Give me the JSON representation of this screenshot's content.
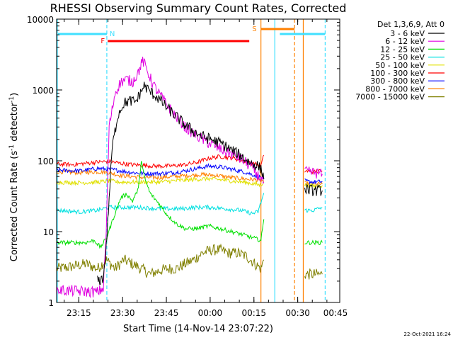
{
  "chart_data": {
    "type": "line",
    "title": "RHESSI Observing Summary Count Rates, Corrected",
    "xlabel": "Start Time (14-Nov-14 23:07:22)",
    "ylabel": "Corrected Count Rate (s",
    "ylabel_sup1": "-1",
    "ylabel_mid": " detector",
    "ylabel_sup2": "-1",
    "ylabel_end": ")",
    "footer": "22-Oct-2021 16:24",
    "y_scale": "log",
    "ylim": [
      1,
      10000
    ],
    "xlim_minutes": [
      0,
      97
    ],
    "x_ticks": [
      {
        "m": 7.6,
        "label": "23:15"
      },
      {
        "m": 22.6,
        "label": "23:30"
      },
      {
        "m": 37.6,
        "label": "23:45"
      },
      {
        "m": 52.6,
        "label": "00:00"
      },
      {
        "m": 67.6,
        "label": "00:15"
      },
      {
        "m": 82.6,
        "label": "00:30"
      },
      {
        "m": 97.6,
        "label": "00:45"
      }
    ],
    "y_ticks": [
      {
        "v": 1,
        "label": "1"
      },
      {
        "v": 10,
        "label": "10"
      },
      {
        "v": 100,
        "label": "100"
      },
      {
        "v": 1000,
        "label": "1000"
      },
      {
        "v": 10000,
        "label": "10000"
      }
    ],
    "legend_header": "Det 1,3,6,9, Att 0",
    "legend_position": "right",
    "grid": false,
    "series": [
      {
        "name": "3 - 6 keV",
        "color": "#000000",
        "points": [
          [
            14,
            2
          ],
          [
            16,
            2.2
          ],
          [
            17,
            6
          ],
          [
            19,
            150
          ],
          [
            21,
            450
          ],
          [
            23,
            650
          ],
          [
            25,
            700
          ],
          [
            27,
            680
          ],
          [
            28,
            800
          ],
          [
            30,
            1150
          ],
          [
            32,
            950
          ],
          [
            35,
            750
          ],
          [
            38,
            550
          ],
          [
            41,
            420
          ],
          [
            44,
            320
          ],
          [
            47,
            260
          ],
          [
            50,
            220
          ],
          [
            53,
            200
          ],
          [
            57,
            170
          ],
          [
            60,
            140
          ],
          [
            63,
            120
          ],
          [
            66,
            95
          ],
          [
            69,
            85
          ],
          [
            70.5,
            70
          ],
          [
            71,
            55
          ]
        ],
        "points2": [
          [
            85,
            40
          ],
          [
            88,
            38
          ],
          [
            91,
            38
          ]
        ]
      },
      {
        "name": "6 - 12 keV",
        "color": "#e000e0",
        "points": [
          [
            0,
            1.5
          ],
          [
            14,
            1.4
          ],
          [
            16,
            1.6
          ],
          [
            17,
            10
          ],
          [
            18,
            300
          ],
          [
            20,
            900
          ],
          [
            22,
            1300
          ],
          [
            24,
            1400
          ],
          [
            26,
            1300
          ],
          [
            28,
            1800
          ],
          [
            29.5,
            2600
          ],
          [
            31,
            1900
          ],
          [
            33,
            1200
          ],
          [
            35,
            900
          ],
          [
            38,
            600
          ],
          [
            41,
            420
          ],
          [
            44,
            300
          ],
          [
            47,
            240
          ],
          [
            50,
            200
          ],
          [
            53,
            170
          ],
          [
            57,
            140
          ],
          [
            61,
            120
          ],
          [
            64,
            100
          ],
          [
            67,
            80
          ],
          [
            69,
            62
          ],
          [
            71,
            50
          ]
        ],
        "points2": [
          [
            85,
            70
          ],
          [
            88,
            68
          ],
          [
            91,
            65
          ]
        ]
      },
      {
        "name": "12 - 25 keV",
        "color": "#00e000",
        "points": [
          [
            0,
            7
          ],
          [
            10,
            7
          ],
          [
            13,
            7.5
          ],
          [
            15,
            6
          ],
          [
            17,
            8
          ],
          [
            20,
            18
          ],
          [
            22,
            30
          ],
          [
            24,
            34
          ],
          [
            26,
            27
          ],
          [
            28,
            40
          ],
          [
            29,
            100
          ],
          [
            30,
            60
          ],
          [
            32,
            35
          ],
          [
            35,
            25
          ],
          [
            38,
            17
          ],
          [
            41,
            13
          ],
          [
            44,
            11
          ],
          [
            48,
            11
          ],
          [
            52,
            12
          ],
          [
            56,
            11
          ],
          [
            60,
            10
          ],
          [
            64,
            9
          ],
          [
            68,
            8
          ],
          [
            70,
            7.5
          ],
          [
            71,
            15
          ]
        ],
        "points2": [
          [
            85,
            7
          ],
          [
            88,
            7
          ],
          [
            91,
            7
          ]
        ]
      },
      {
        "name": "25 - 50 keV",
        "color": "#00e0e0",
        "points": [
          [
            0,
            20
          ],
          [
            8,
            19
          ],
          [
            14,
            20
          ],
          [
            18,
            22
          ],
          [
            22,
            22
          ],
          [
            28,
            22
          ],
          [
            35,
            21
          ],
          [
            42,
            21
          ],
          [
            48,
            22
          ],
          [
            53,
            22
          ],
          [
            58,
            21
          ],
          [
            63,
            20
          ],
          [
            67,
            18
          ],
          [
            69,
            19
          ],
          [
            71,
            35
          ]
        ],
        "points2": [
          [
            85,
            20
          ],
          [
            88,
            20
          ],
          [
            91,
            22
          ]
        ]
      },
      {
        "name": "50 - 100 keV",
        "color": "#e0e000",
        "points": [
          [
            0,
            50
          ],
          [
            8,
            49
          ],
          [
            14,
            50
          ],
          [
            18,
            52
          ],
          [
            22,
            50
          ],
          [
            28,
            50
          ],
          [
            34,
            50
          ],
          [
            40,
            52
          ],
          [
            46,
            54
          ],
          [
            52,
            56
          ],
          [
            56,
            54
          ],
          [
            60,
            52
          ],
          [
            64,
            50
          ],
          [
            68,
            47
          ],
          [
            70,
            45
          ],
          [
            71,
            52
          ]
        ],
        "points2": [
          [
            85,
            45
          ],
          [
            88,
            44
          ],
          [
            91,
            45
          ]
        ]
      },
      {
        "name": "100 - 300 keV",
        "color": "#ff0000",
        "points": [
          [
            0,
            90
          ],
          [
            5,
            88
          ],
          [
            10,
            92
          ],
          [
            14,
            96
          ],
          [
            18,
            98
          ],
          [
            22,
            92
          ],
          [
            26,
            88
          ],
          [
            30,
            86
          ],
          [
            35,
            84
          ],
          [
            40,
            85
          ],
          [
            44,
            88
          ],
          [
            48,
            95
          ],
          [
            52,
            108
          ],
          [
            56,
            115
          ],
          [
            60,
            110
          ],
          [
            64,
            100
          ],
          [
            68,
            90
          ],
          [
            70,
            85
          ],
          [
            71,
            120
          ]
        ],
        "points2": [
          [
            85,
            72
          ],
          [
            88,
            70
          ],
          [
            91,
            72
          ]
        ]
      },
      {
        "name": "300 - 800 keV",
        "color": "#0000ff",
        "points": [
          [
            0,
            74
          ],
          [
            8,
            72
          ],
          [
            14,
            78
          ],
          [
            18,
            76
          ],
          [
            22,
            72
          ],
          [
            26,
            68
          ],
          [
            30,
            66
          ],
          [
            35,
            66
          ],
          [
            40,
            68
          ],
          [
            44,
            72
          ],
          [
            48,
            78
          ],
          [
            52,
            84
          ],
          [
            56,
            82
          ],
          [
            60,
            76
          ],
          [
            64,
            70
          ],
          [
            68,
            62
          ],
          [
            70,
            58
          ],
          [
            71,
            55
          ]
        ],
        "points2": [
          [
            85,
            52
          ],
          [
            88,
            50
          ],
          [
            91,
            51
          ]
        ]
      },
      {
        "name": "800 - 7000 keV",
        "color": "#ff8000",
        "points": [
          [
            0,
            70
          ],
          [
            8,
            68
          ],
          [
            14,
            70
          ],
          [
            18,
            68
          ],
          [
            22,
            62
          ],
          [
            26,
            60
          ],
          [
            30,
            58
          ],
          [
            35,
            58
          ],
          [
            40,
            60
          ],
          [
            45,
            62
          ],
          [
            50,
            64
          ],
          [
            55,
            62
          ],
          [
            60,
            58
          ],
          [
            64,
            56
          ],
          [
            68,
            54
          ],
          [
            70,
            52
          ],
          [
            71,
            54
          ]
        ],
        "points2": [
          [
            85,
            48
          ],
          [
            88,
            47
          ],
          [
            91,
            47
          ]
        ]
      },
      {
        "name": "7000 - 15000 keV",
        "color": "#808000",
        "points": [
          [
            0,
            3
          ],
          [
            5,
            3.2
          ],
          [
            10,
            3.5
          ],
          [
            14,
            3
          ],
          [
            17,
            4
          ],
          [
            20,
            3
          ],
          [
            23,
            4
          ],
          [
            26,
            3.5
          ],
          [
            29,
            3
          ],
          [
            32,
            2.5
          ],
          [
            35,
            2.8
          ],
          [
            38,
            3
          ],
          [
            41,
            3
          ],
          [
            44,
            3.5
          ],
          [
            47,
            4
          ],
          [
            50,
            5
          ],
          [
            53,
            5.5
          ],
          [
            56,
            5.5
          ],
          [
            59,
            5
          ],
          [
            62,
            5
          ],
          [
            65,
            4.5
          ],
          [
            68,
            3.5
          ],
          [
            70,
            3
          ],
          [
            71,
            4
          ]
        ],
        "points2": [
          [
            85,
            2.5
          ],
          [
            88,
            2.5
          ],
          [
            91,
            2.5
          ]
        ]
      }
    ],
    "annotations": {
      "night_label": "N",
      "flare_label": "F",
      "saa_label": "S",
      "night_bars": [
        [
          0,
          17.2
        ],
        [
          76,
          92
        ]
      ],
      "flare_bar": [
        17.5,
        66
      ],
      "saa_bar": [
        70,
        81.5
      ],
      "vlines_cyan_solid": [
        0,
        74.5
      ],
      "vlines_cyan_dashed": [
        17.2,
        92
      ],
      "vlines_orange_solid": [
        70,
        84.5
      ],
      "vlines_orange_dashed": [
        81.5
      ]
    }
  }
}
